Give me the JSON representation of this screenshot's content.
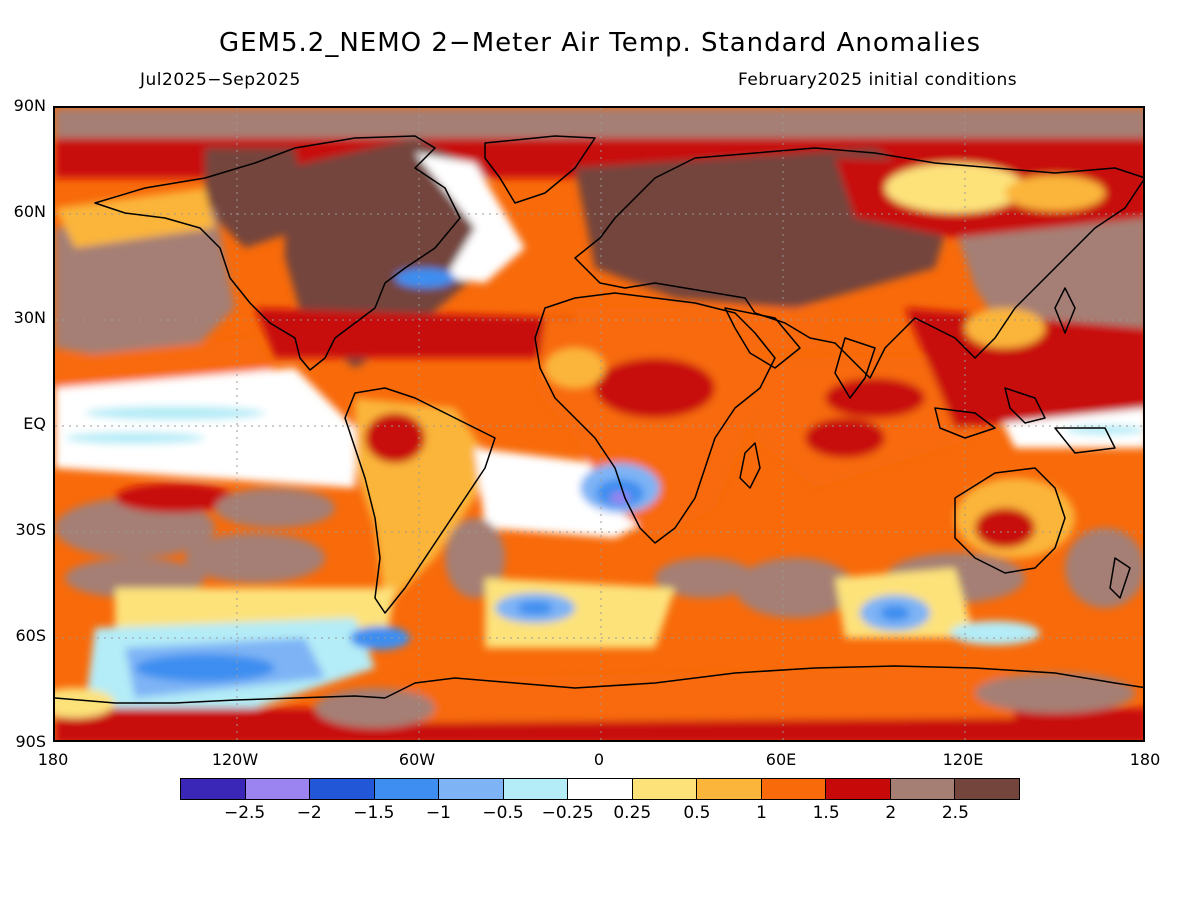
{
  "title": "GEM5.2_NEMO 2−Meter Air Temp. Standard Anomalies",
  "period": "Jul2025−Sep2025",
  "init": "February2025 initial conditions",
  "lat_labels": [
    "90N",
    "60N",
    "30N",
    "EQ",
    "30S",
    "60S",
    "90S"
  ],
  "lon_labels": [
    "180",
    "120W",
    "60W",
    "0",
    "60E",
    "120E",
    "180"
  ],
  "colorbar": {
    "colors": [
      "#3a27b8",
      "#9b83f0",
      "#2257d8",
      "#3d8ef0",
      "#7eb4f5",
      "#b4ecf7",
      "#ffffff",
      "#fde27a",
      "#fbb53a",
      "#f86a0a",
      "#c8090a",
      "#a57f74",
      "#73453d"
    ],
    "labels": [
      "−2.5",
      "−2",
      "−1.5",
      "−1",
      "−0.5",
      "−0.25",
      "0.25",
      "0.5",
      "1",
      "1.5",
      "2",
      "2.5"
    ]
  },
  "map": {
    "background_color": "#f86a0a",
    "coastline_color": "#000000",
    "gridline_color": "#999999"
  }
}
